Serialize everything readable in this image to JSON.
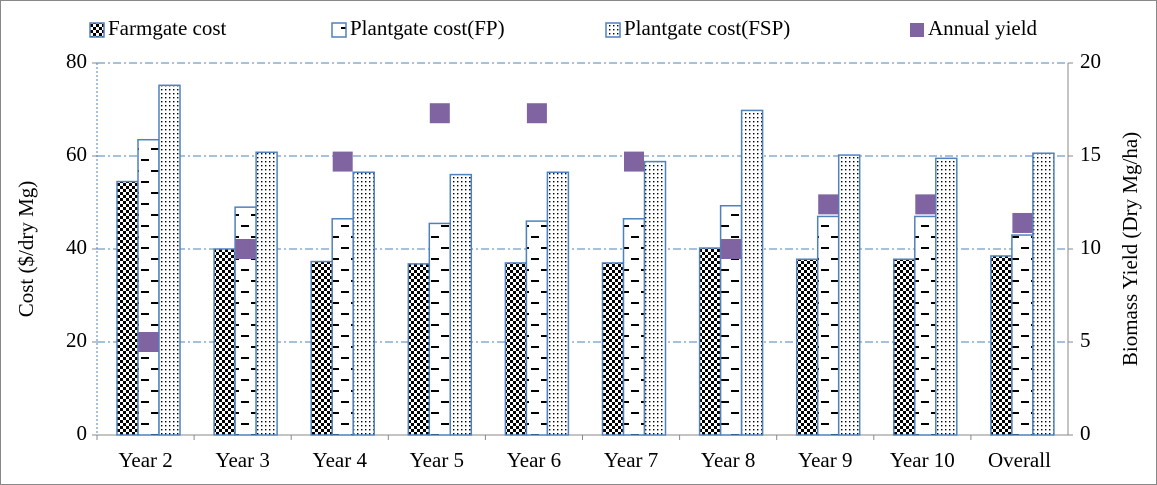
{
  "chart_data": {
    "type": "bar",
    "categories": [
      "Year 2",
      "Year 3",
      "Year 4",
      "Year 5",
      "Year 6",
      "Year 7",
      "Year 8",
      "Year 9",
      "Year 10",
      "Overall"
    ],
    "y_label": "Cost ($/dry Mg)",
    "y2_label": "Biomass Yield (Dry Mg/ha)",
    "series": [
      {
        "name": "Farmgate cost",
        "type": "bar",
        "pattern": "checker",
        "color": "#4f81bd",
        "values": [
          54.5,
          40,
          37.3,
          36.8,
          37,
          37,
          40.2,
          37.8,
          37.8,
          38.5
        ]
      },
      {
        "name": "Plantgate cost(FP)",
        "type": "bar",
        "pattern": "dash",
        "color": "#4f81bd",
        "values": [
          63.5,
          49,
          46.5,
          45.5,
          46,
          46.5,
          49.3,
          47,
          47,
          43
        ]
      },
      {
        "name": "Plantgate cost(FSP)",
        "type": "bar",
        "pattern": "dots",
        "color": "#4f81bd",
        "values": [
          75.2,
          60.8,
          56.5,
          56,
          56.5,
          58.8,
          69.8,
          60.2,
          59.5,
          60.6
        ]
      },
      {
        "name": "Annual yield",
        "type": "scatter",
        "axis": "y2",
        "color": "#8064a2",
        "values": [
          5,
          10,
          14.7,
          17.3,
          17.3,
          14.7,
          10,
          12.4,
          12.4,
          11.4
        ]
      }
    ],
    "ylim": [
      0,
      80
    ],
    "yticks": [
      0,
      20,
      40,
      60,
      80
    ],
    "y2lim": [
      0,
      20
    ],
    "y2ticks": [
      0,
      5,
      10,
      15,
      20
    ],
    "grid": true,
    "legend": "top"
  }
}
